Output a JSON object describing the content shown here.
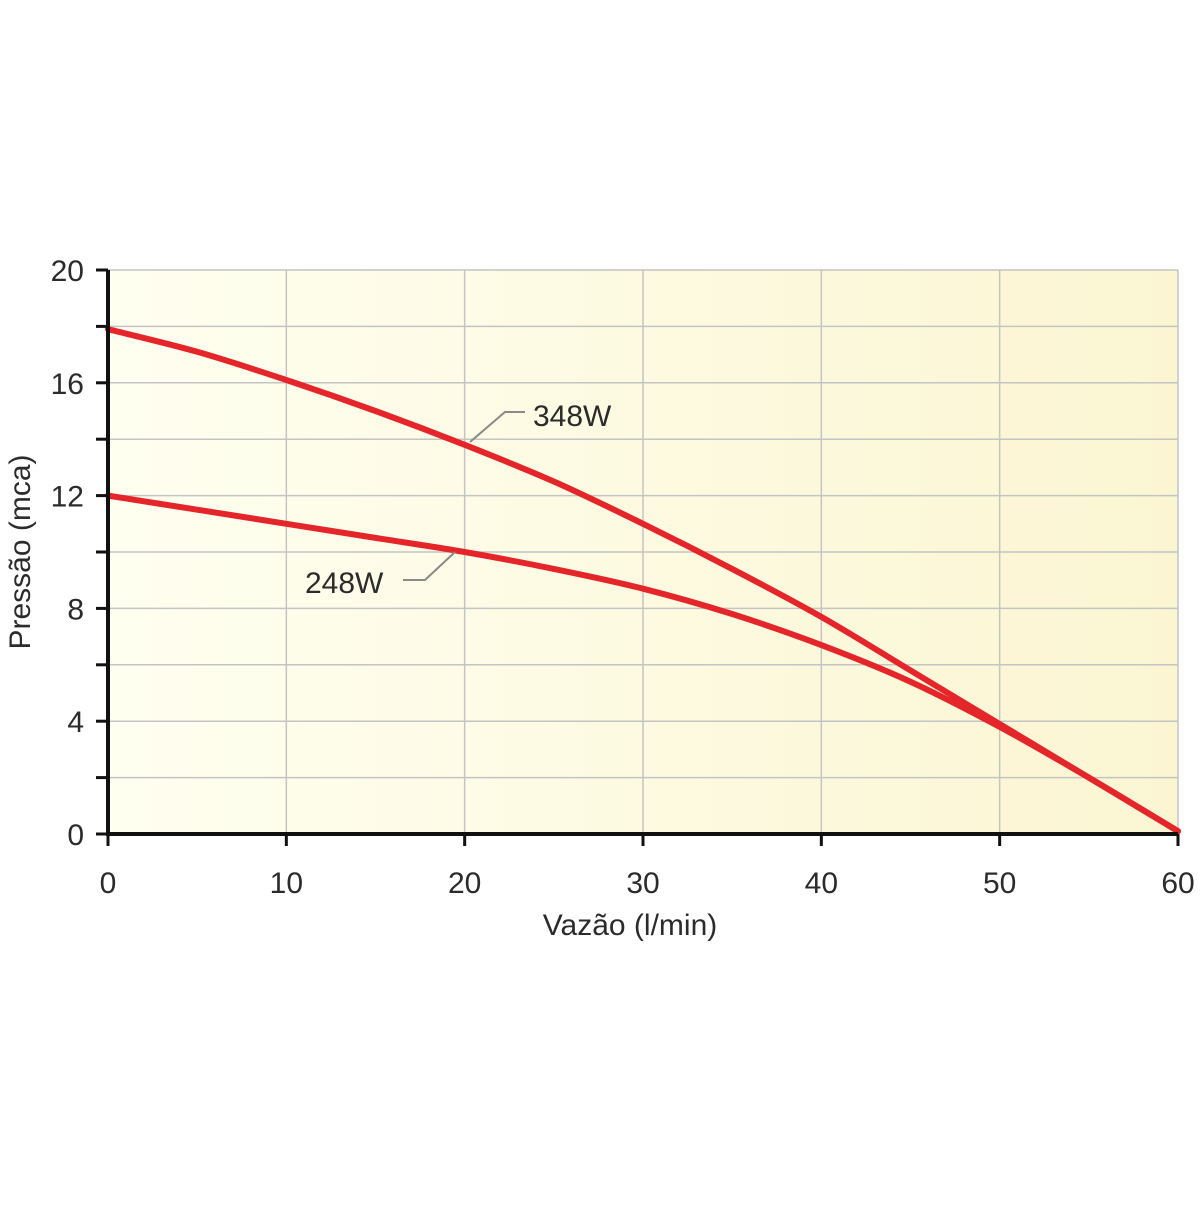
{
  "chart_data": {
    "type": "line",
    "title": "",
    "xlabel": "Vazão (l/min)",
    "ylabel": "Pressão (mca)",
    "xlim": [
      0,
      60
    ],
    "ylim": [
      0,
      20
    ],
    "x_ticks": [
      "0",
      "10",
      "20",
      "30",
      "40",
      "50",
      "60"
    ],
    "y_ticks": [
      "0",
      "4",
      "8",
      "12",
      "16",
      "20"
    ],
    "grid": true,
    "legend": "none",
    "colors": {
      "series": "#e4262b",
      "plot_bg_left": "#fffff0",
      "plot_bg_right": "#fbf5d2"
    },
    "series": [
      {
        "name": "348W",
        "x": [
          0,
          5,
          10,
          15,
          20,
          25,
          30,
          35,
          40,
          45,
          50,
          55,
          60
        ],
        "y": [
          17.9,
          17.1,
          16.1,
          15.0,
          13.8,
          12.5,
          11.0,
          9.4,
          7.7,
          5.8,
          3.9,
          2.0,
          0.1
        ]
      },
      {
        "name": "248W",
        "x": [
          0,
          5,
          10,
          15,
          20,
          25,
          30,
          35,
          40,
          45,
          50,
          55,
          60
        ],
        "y": [
          12.0,
          11.5,
          11.0,
          10.5,
          10.0,
          9.4,
          8.7,
          7.8,
          6.7,
          5.4,
          3.8,
          2.0,
          0.1
        ]
      }
    ]
  }
}
